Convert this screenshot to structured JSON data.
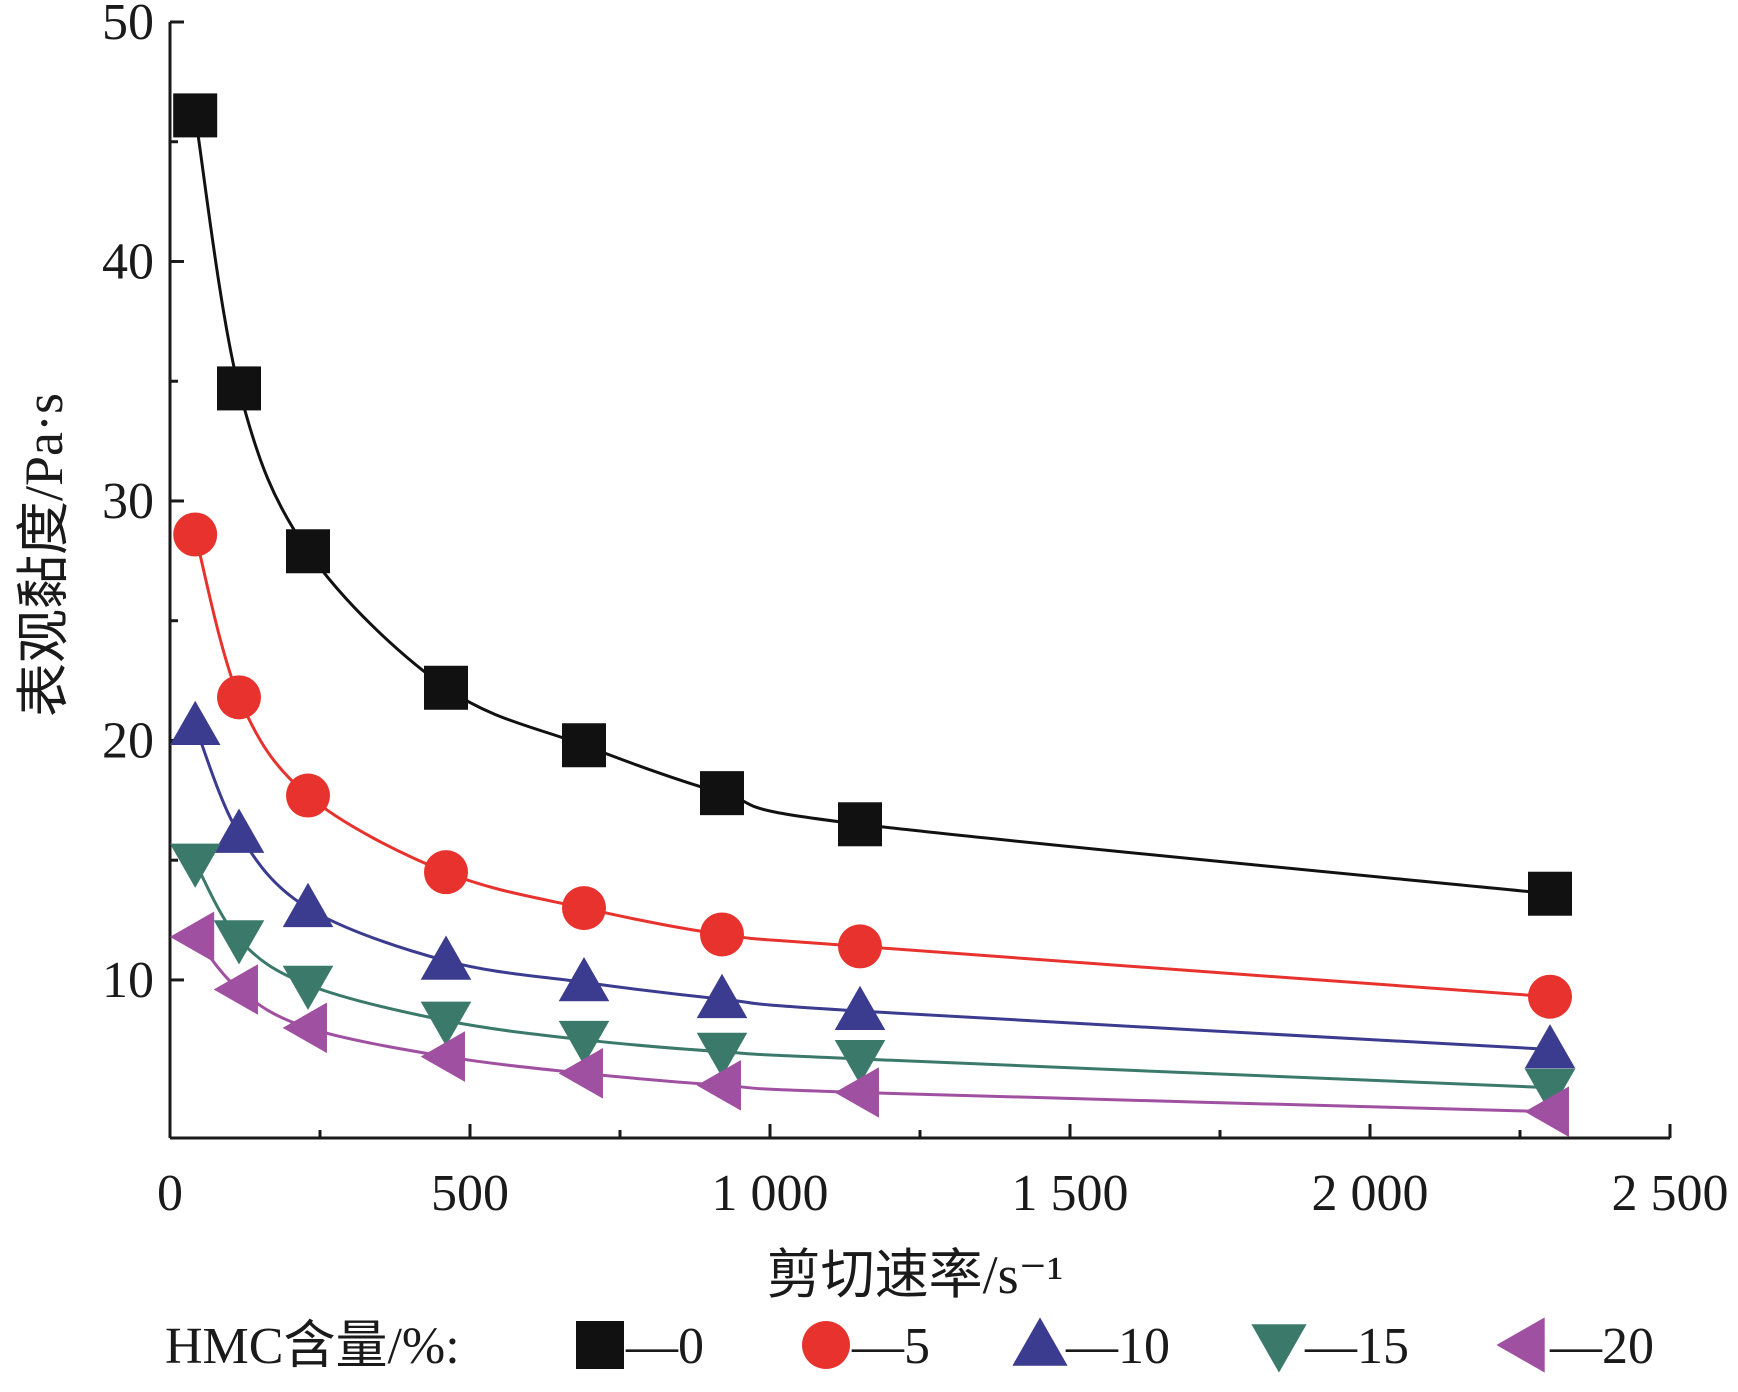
{
  "chart_data": {
    "type": "line",
    "xlabel": "剪切速率/s⁻¹",
    "ylabel": "表观黏度/Pa·s",
    "xlim": [
      0,
      2500
    ],
    "ylim": [
      3.4,
      50
    ],
    "x_ticks": [
      0,
      500,
      1000,
      1500,
      2000,
      2500
    ],
    "x_tick_labels": [
      "0",
      "500",
      "1 000",
      "1 500",
      "2 000",
      "2 500"
    ],
    "y_ticks": [
      10,
      20,
      30,
      40,
      50
    ],
    "y_tick_labels": [
      "10",
      "20",
      "30",
      "40",
      "50"
    ],
    "grid": false,
    "legend_position": "bottom",
    "legend_title": "HMC含量/%:",
    "x": [
      42,
      115,
      230,
      460,
      690,
      920,
      1150,
      2300
    ],
    "series": [
      {
        "name": "—0",
        "marker": "square",
        "color": "#111111",
        "values": [
          46.1,
          34.7,
          27.9,
          22.2,
          19.8,
          17.8,
          16.5,
          13.6
        ]
      },
      {
        "name": "—5",
        "marker": "circle",
        "color": "#e8322d",
        "values": [
          28.6,
          21.8,
          17.7,
          14.5,
          13.0,
          11.9,
          11.4,
          9.3
        ]
      },
      {
        "name": "—10",
        "marker": "triangle-up",
        "color": "#3b3b8f",
        "values": [
          20.6,
          16.1,
          13.0,
          10.8,
          9.9,
          9.2,
          8.7,
          7.1
        ]
      },
      {
        "name": "—15",
        "marker": "triangle-down",
        "color": "#3b7a6a",
        "values": [
          14.9,
          11.7,
          9.8,
          8.3,
          7.5,
          7.0,
          6.7,
          5.5
        ]
      },
      {
        "name": "—20",
        "marker": "triangle-left",
        "color": "#a050a0",
        "values": [
          11.8,
          9.6,
          8.0,
          6.8,
          6.1,
          5.6,
          5.3,
          4.5
        ]
      }
    ]
  }
}
